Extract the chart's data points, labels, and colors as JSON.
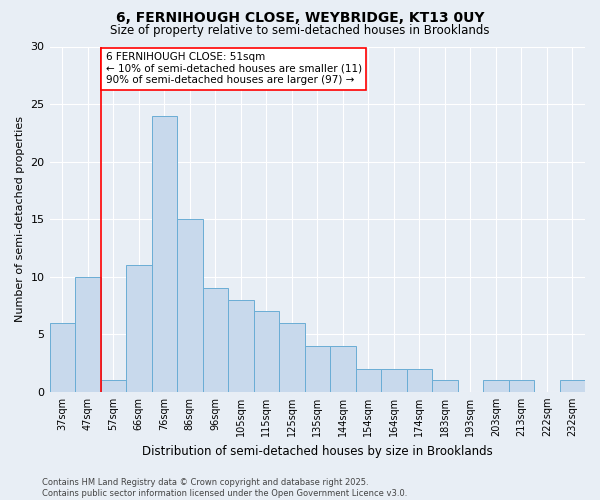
{
  "title1": "6, FERNIHOUGH CLOSE, WEYBRIDGE, KT13 0UY",
  "title2": "Size of property relative to semi-detached houses in Brooklands",
  "xlabel": "Distribution of semi-detached houses by size in Brooklands",
  "ylabel": "Number of semi-detached properties",
  "categories": [
    "37sqm",
    "47sqm",
    "57sqm",
    "66sqm",
    "76sqm",
    "86sqm",
    "96sqm",
    "105sqm",
    "115sqm",
    "125sqm",
    "135sqm",
    "144sqm",
    "154sqm",
    "164sqm",
    "174sqm",
    "183sqm",
    "193sqm",
    "203sqm",
    "213sqm",
    "222sqm",
    "232sqm"
  ],
  "values": [
    6,
    10,
    1,
    11,
    24,
    15,
    9,
    8,
    7,
    6,
    4,
    4,
    2,
    2,
    2,
    1,
    0,
    1,
    1,
    0,
    1
  ],
  "bar_color": "#c8d9ec",
  "bar_edge_color": "#6aadd5",
  "annotation_title": "6 FERNIHOUGH CLOSE: 51sqm",
  "annotation_line1": "← 10% of semi-detached houses are smaller (11)",
  "annotation_line2": "90% of semi-detached houses are larger (97) →",
  "vline_index": 1,
  "ylim": [
    0,
    30
  ],
  "yticks": [
    0,
    5,
    10,
    15,
    20,
    25,
    30
  ],
  "footer1": "Contains HM Land Registry data © Crown copyright and database right 2025.",
  "footer2": "Contains public sector information licensed under the Open Government Licence v3.0.",
  "background_color": "#e8eef5",
  "grid_color": "#ffffff"
}
